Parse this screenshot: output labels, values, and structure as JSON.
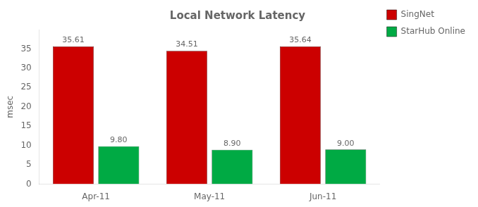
{
  "chart_data": {
    "type": "bar",
    "title": "Local Network Latency",
    "categories": [
      "Apr-11",
      "May-11",
      "Jun-11"
    ],
    "series": [
      {
        "name": "SingNet",
        "color": "#CC0000",
        "values": [
          35.61,
          34.51,
          35.64
        ]
      },
      {
        "name": "StarHub Online",
        "color": "#00AA44",
        "values": [
          9.8,
          8.9,
          9.0
        ],
        "value_labels": [
          "9.80",
          "8.90",
          "9.00"
        ]
      }
    ],
    "ylabel": "msec",
    "ylim": [
      0,
      40
    ],
    "yticks": [
      0,
      5,
      10,
      15,
      20,
      25,
      30,
      35
    ],
    "grid": false,
    "legend": "right",
    "data_labels": true
  }
}
